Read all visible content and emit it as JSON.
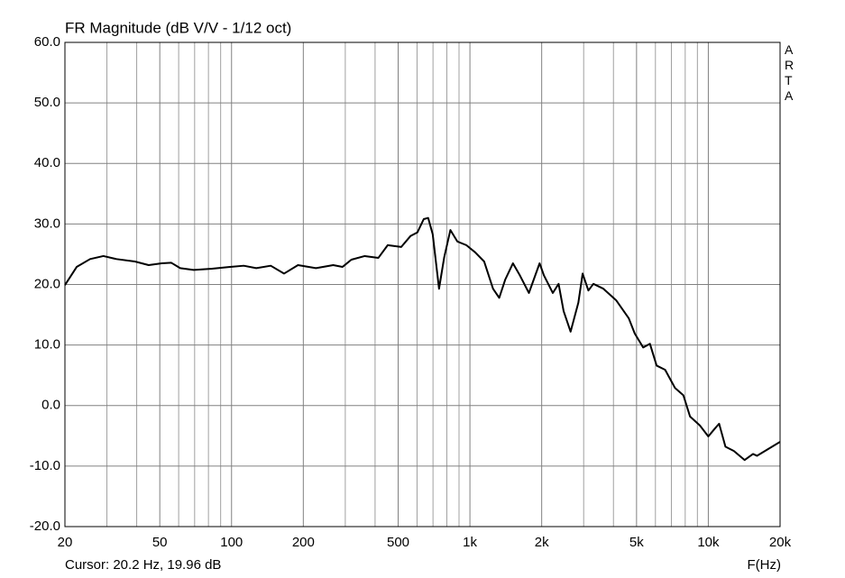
{
  "chart_data": {
    "type": "line",
    "title": "FR Magnitude (dB V/V - 1/12 oct)",
    "side_label": "ARTA",
    "cursor_text": "Cursor: 20.2 Hz, 19.96 dB",
    "x_label": "F(Hz)",
    "xscale": "log",
    "xlim": [
      20,
      20000
    ],
    "ylim": [
      -20,
      60
    ],
    "xticks": [
      20,
      50,
      100,
      200,
      500,
      {
        "value": 1000,
        "label": "1k"
      },
      {
        "value": 2000,
        "label": "2k"
      },
      {
        "value": 5000,
        "label": "5k"
      },
      {
        "value": 10000,
        "label": "10k"
      },
      {
        "value": 20000,
        "label": "20k"
      }
    ],
    "xminor_ticks": [
      30,
      40,
      60,
      70,
      80,
      90,
      300,
      400,
      600,
      700,
      800,
      900,
      3000,
      4000,
      6000,
      7000,
      8000,
      9000
    ],
    "yticks": [
      {
        "value": -20,
        "label": "-20.0"
      },
      {
        "value": -10,
        "label": "-10.0"
      },
      {
        "value": 0,
        "label": "0.0"
      },
      {
        "value": 10,
        "label": "10.0"
      },
      {
        "value": 20,
        "label": "20.0"
      },
      {
        "value": 30,
        "label": "30.0"
      },
      {
        "value": 40,
        "label": "40.0"
      },
      {
        "value": 50,
        "label": "50.0"
      },
      {
        "value": 60,
        "label": "60.0"
      }
    ],
    "grid": true,
    "color": "#000000",
    "x": [
      20,
      22.4,
      25.5,
      29,
      32.9,
      39.3,
      44.9,
      51,
      55.8,
      60.9,
      69.4,
      82.8,
      98.7,
      112.5,
      127,
      146,
      166,
      190,
      226,
      267,
      292,
      318,
      362,
      413,
      452,
      515,
      563,
      602,
      640,
      668,
      698,
      742,
      780,
      828,
      886,
      966,
      1053,
      1147,
      1250,
      1327,
      1406,
      1515,
      1620,
      1768,
      1960,
      2044,
      2227,
      2355,
      2472,
      2644,
      2850,
      2970,
      3140,
      3295,
      3630,
      4105,
      4640,
      4914,
      5330,
      5690,
      6070,
      6590,
      7250,
      7860,
      8380,
      9220,
      10000,
      10600,
      11100,
      11800,
      12800,
      14200,
      15400,
      16000,
      20000
    ],
    "values": [
      19.9,
      22.9,
      24.2,
      24.7,
      24.2,
      23.8,
      23.2,
      23.5,
      23.6,
      22.7,
      22.4,
      22.6,
      22.9,
      23.1,
      22.7,
      23.1,
      21.8,
      23.2,
      22.7,
      23.2,
      22.9,
      24.1,
      24.7,
      24.4,
      26.5,
      26.2,
      28.0,
      28.6,
      30.8,
      31.0,
      28.3,
      19.3,
      24.5,
      29.0,
      27.1,
      26.5,
      25.3,
      23.8,
      19.3,
      17.8,
      20.8,
      23.5,
      21.5,
      18.6,
      23.5,
      21.5,
      18.6,
      20.1,
      15.6,
      12.2,
      17.0,
      21.8,
      19.0,
      20.1,
      19.3,
      17.4,
      14.4,
      11.9,
      9.6,
      10.2,
      6.6,
      5.9,
      2.9,
      1.7,
      -1.8,
      -3.3,
      -5.1,
      -3.9,
      -3.0,
      -6.8,
      -7.5,
      -9.0,
      -8.0,
      -8.3,
      -6.0
    ]
  }
}
